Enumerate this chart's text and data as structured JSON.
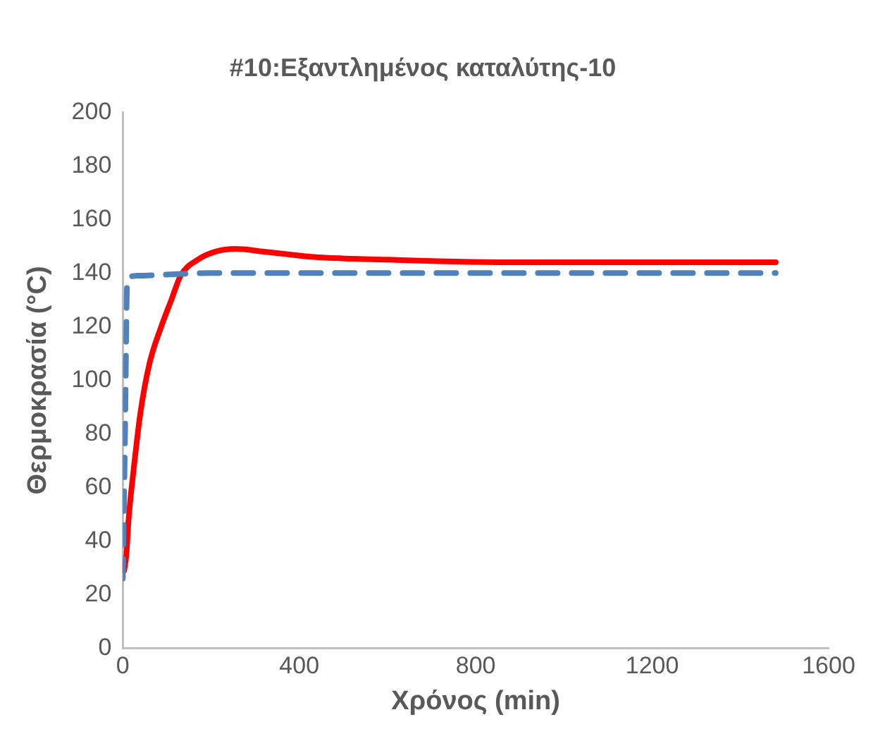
{
  "chart_data": {
    "type": "line",
    "title": "#10:Εξαντλημένος καταλύτης-10",
    "xlabel": "Χρόνος (min)",
    "ylabel": "Θερμοκρασία (°C)",
    "xlim": [
      0,
      1600
    ],
    "xticks": [
      0,
      400,
      800,
      1200,
      1600
    ],
    "ylim": [
      0,
      200
    ],
    "yticks": [
      0,
      20,
      40,
      60,
      80,
      100,
      120,
      140,
      160,
      180,
      200
    ],
    "grid": false,
    "legend": false,
    "marker": "none",
    "series": [
      {
        "color": "#4f81bd",
        "line_style": "dashed",
        "x": [
          0,
          5,
          10,
          30,
          200,
          600,
          1000,
          1480
        ],
        "values": [
          26,
          80,
          137,
          139,
          140,
          140,
          140,
          140
        ]
      },
      {
        "color": "#ff0000",
        "line_style": "solid",
        "x": [
          3,
          8,
          13,
          24,
          40,
          60,
          87,
          110,
          131,
          170,
          210,
          256,
          320,
          434,
          600,
          900,
          1200,
          1480
        ],
        "values": [
          29,
          35,
          48,
          66,
          88,
          106,
          120,
          130,
          139,
          145,
          148,
          149,
          148,
          146,
          145,
          144,
          144,
          144
        ]
      }
    ]
  }
}
